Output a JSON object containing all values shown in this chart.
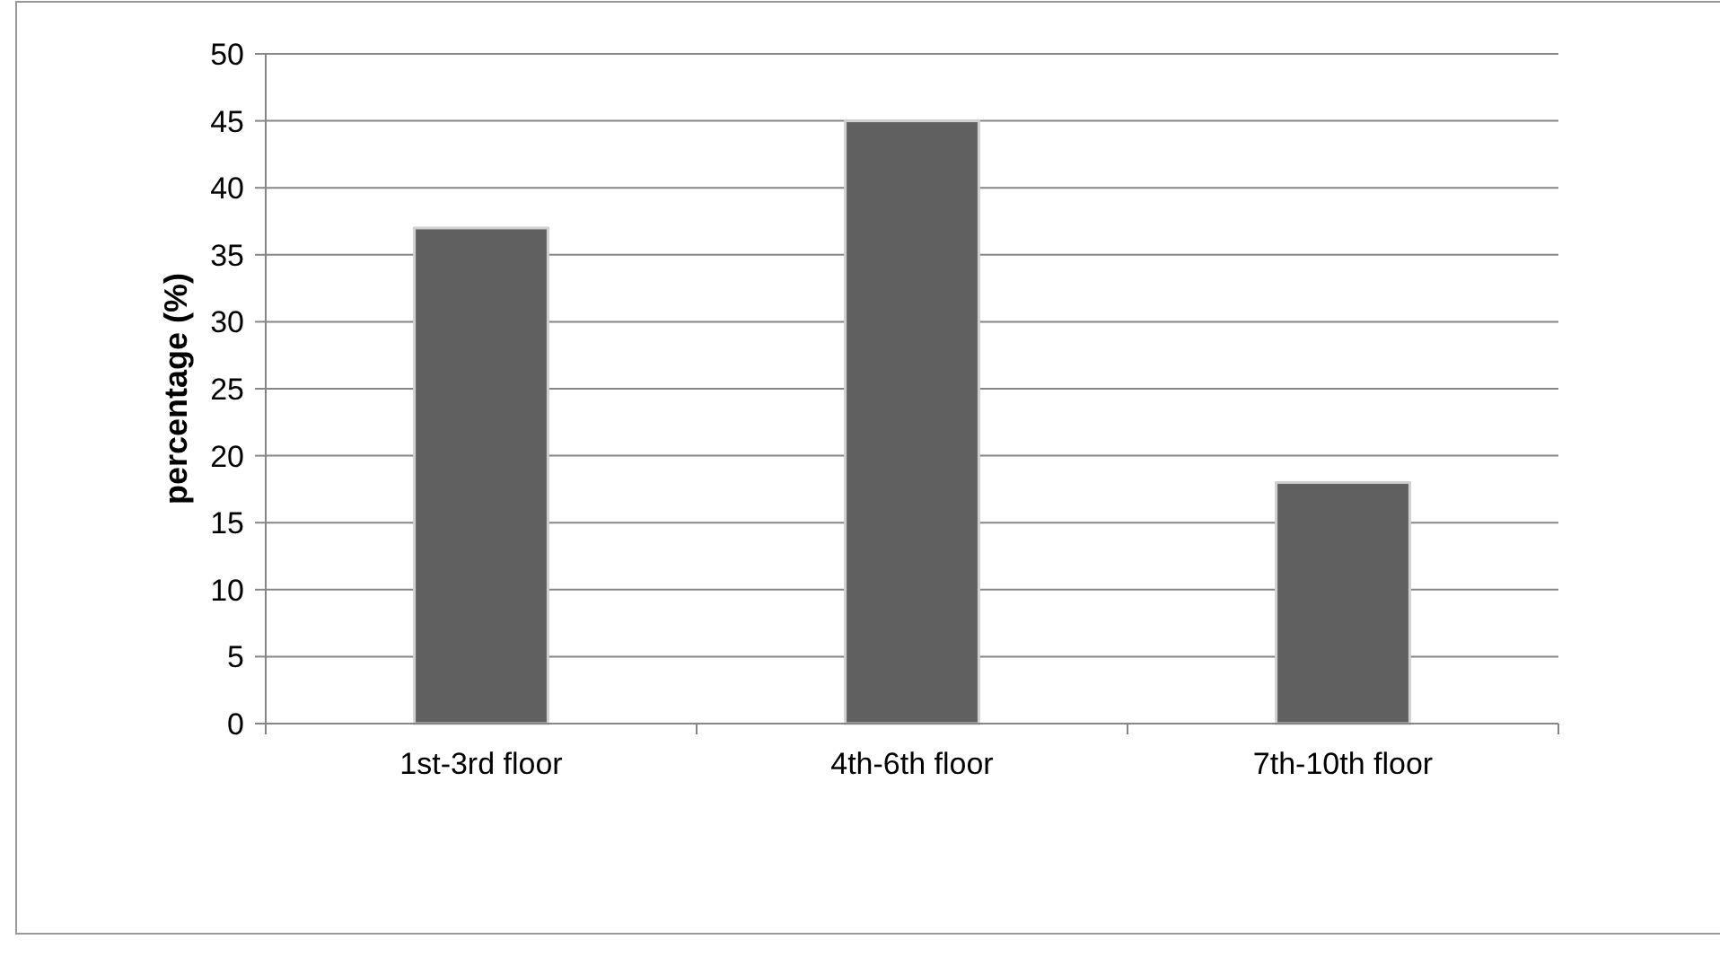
{
  "chart_data": {
    "type": "bar",
    "ylabel": "percentage (%)",
    "categories": [
      "1st-3rd floor",
      "4th-6th floor",
      "7th-10th floor"
    ],
    "values": [
      37,
      45,
      18
    ],
    "color": "#606060",
    "ylim": [
      0,
      50
    ],
    "yticks": [
      0,
      5,
      10,
      15,
      20,
      25,
      30,
      35,
      40,
      45,
      50
    ],
    "grid": "y"
  }
}
